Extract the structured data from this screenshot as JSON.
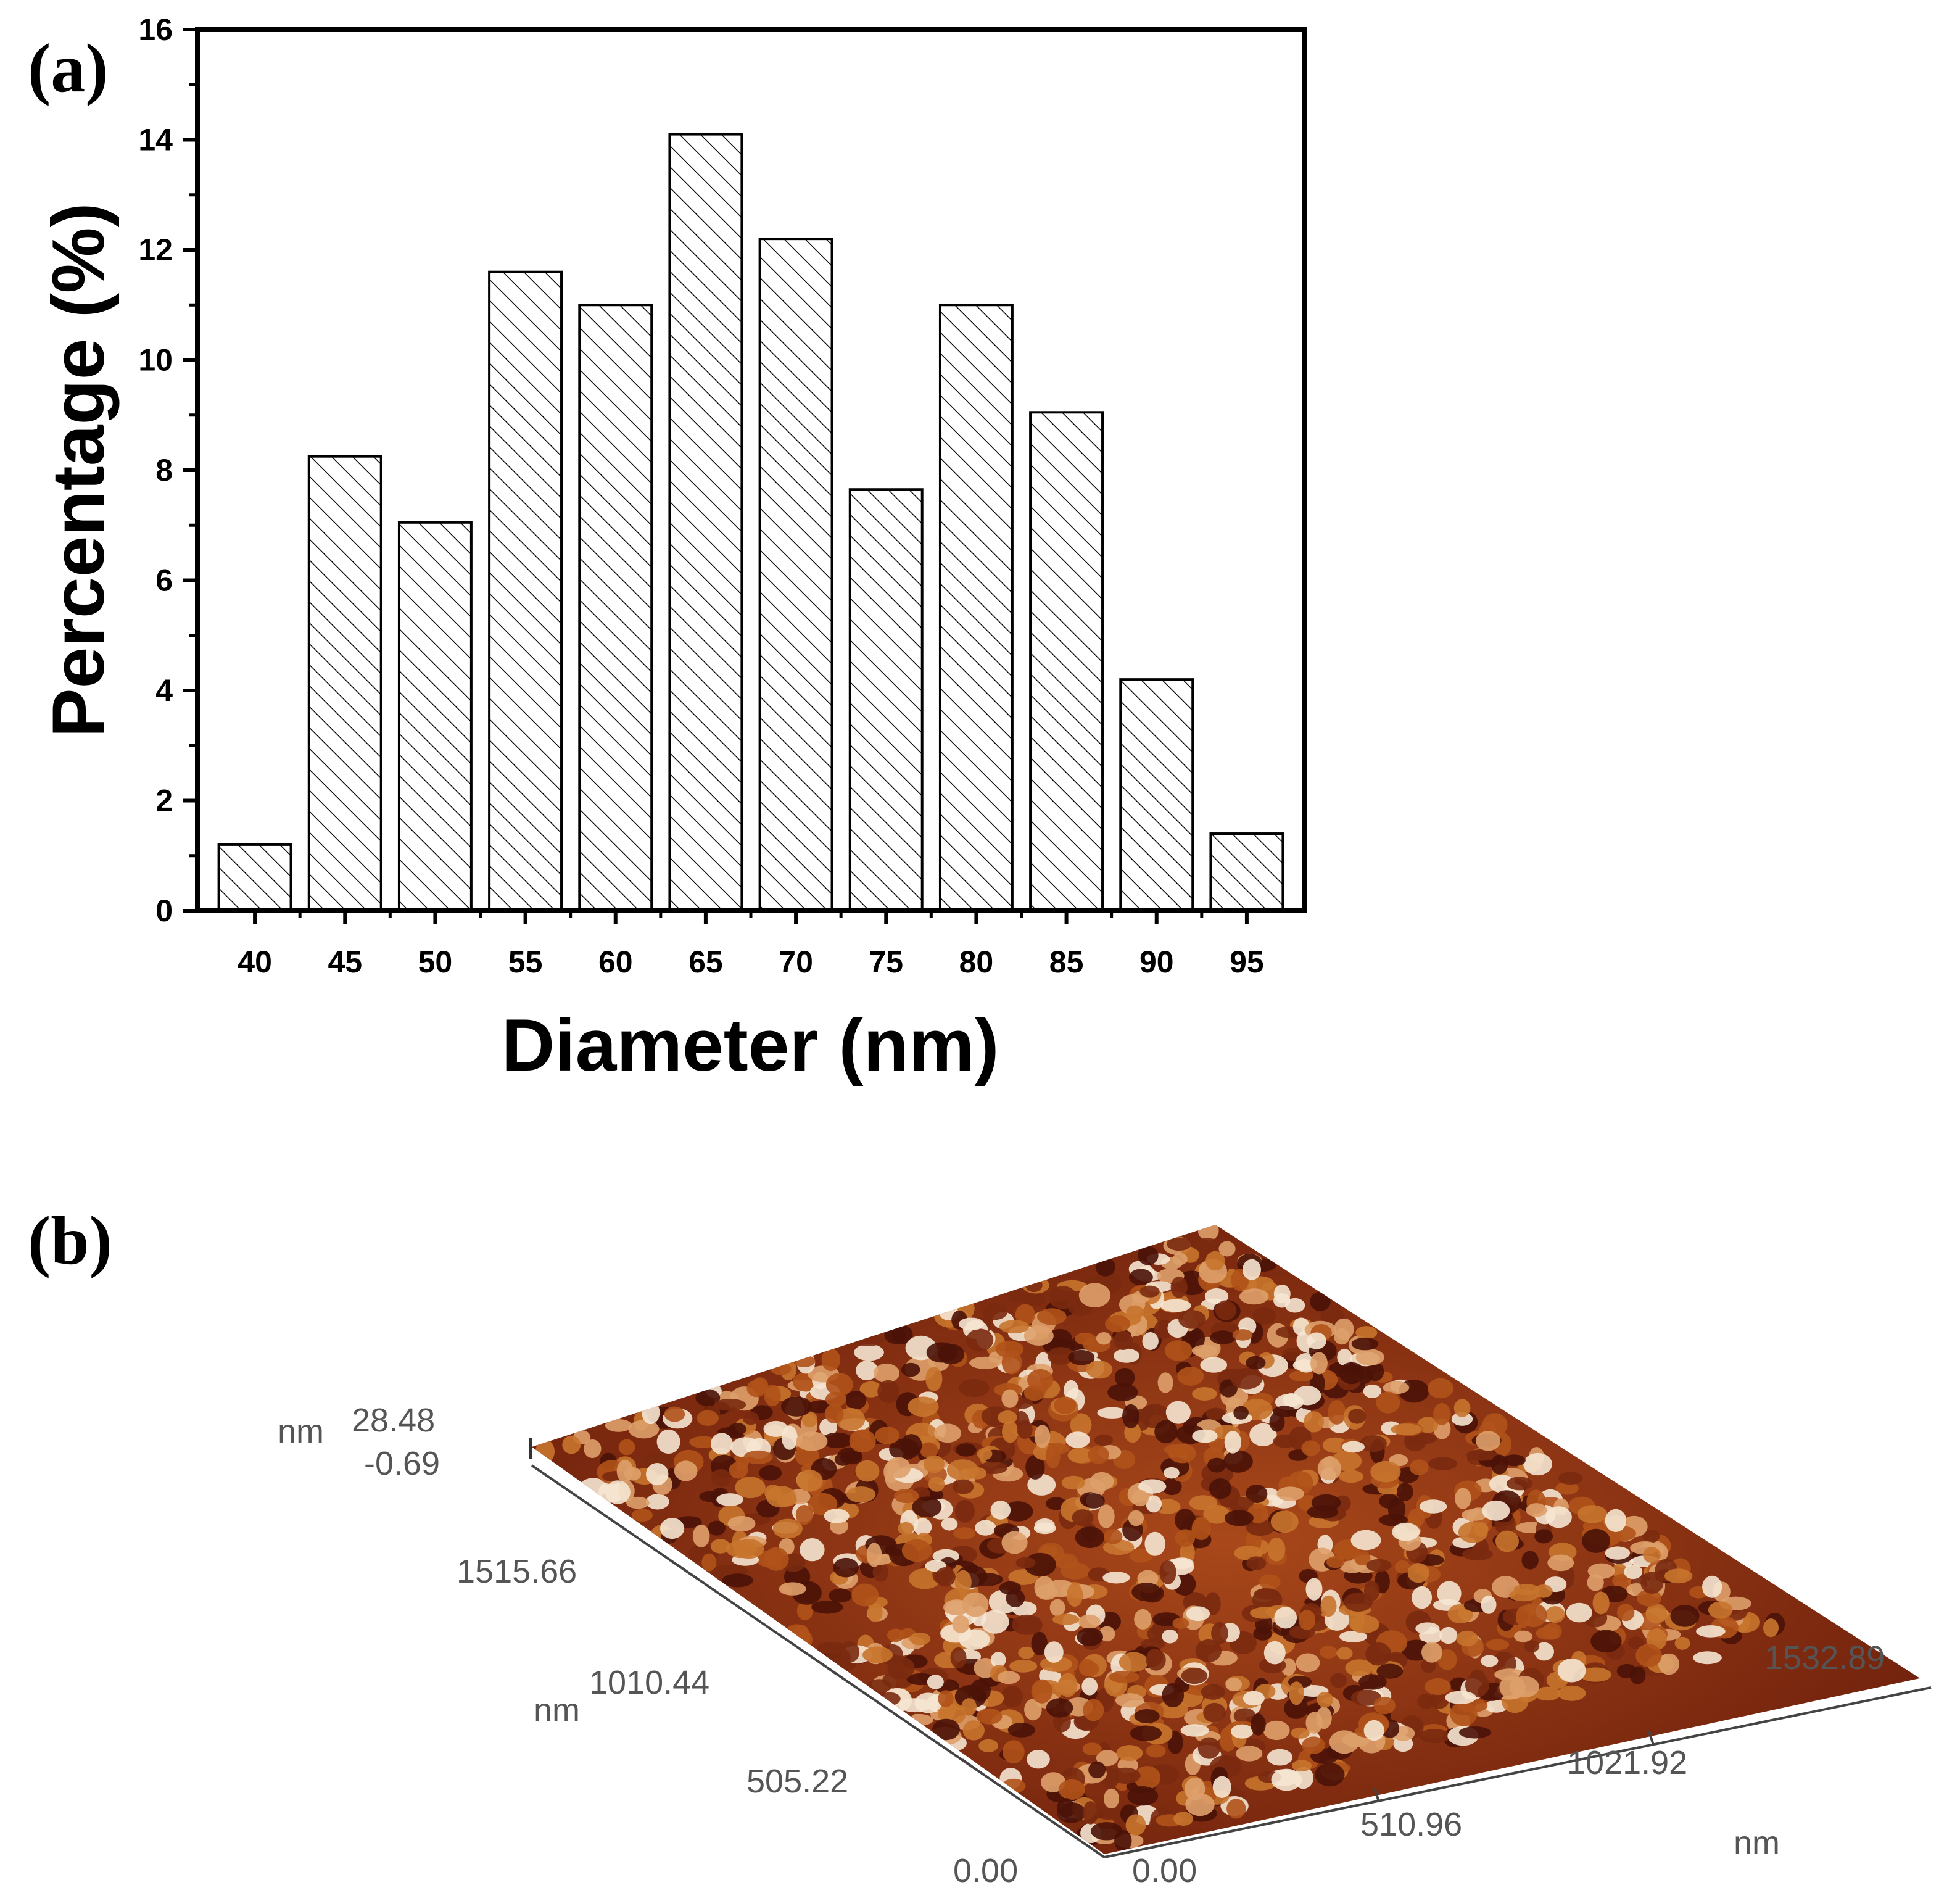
{
  "panel_a": {
    "label": "(a)"
  },
  "panel_b": {
    "label": "(b)"
  },
  "chart_data": [
    {
      "type": "bar",
      "title": "",
      "xlabel": "Diameter (nm)",
      "ylabel": "Percentage (%)",
      "categories": [
        "40",
        "45",
        "50",
        "55",
        "60",
        "65",
        "70",
        "75",
        "80",
        "85",
        "90",
        "95"
      ],
      "values": [
        1.2,
        8.25,
        7.05,
        11.6,
        11.0,
        14.1,
        12.2,
        7.65,
        11.0,
        9.05,
        4.2,
        1.4
      ],
      "ylim": [
        0,
        16
      ],
      "yticks": [
        "0",
        "2",
        "4",
        "6",
        "8",
        "10",
        "12",
        "14",
        "16"
      ],
      "grid": false,
      "bar_fill": "hatched"
    },
    {
      "type": "surface",
      "title": "",
      "z_unit": "nm",
      "z_range_labels": [
        "28.48",
        "-0.69"
      ],
      "y_unit": "nm",
      "y_tick_labels": [
        "0.00",
        "505.22",
        "1010.44",
        "1515.66"
      ],
      "x_unit": "nm",
      "x_tick_labels": [
        "0.00",
        "510.96",
        "1021.92",
        "1532.89"
      ],
      "colors": {
        "low": "#4a1208",
        "mid": "#b0521a",
        "high": "#f5e6d2"
      }
    }
  ]
}
